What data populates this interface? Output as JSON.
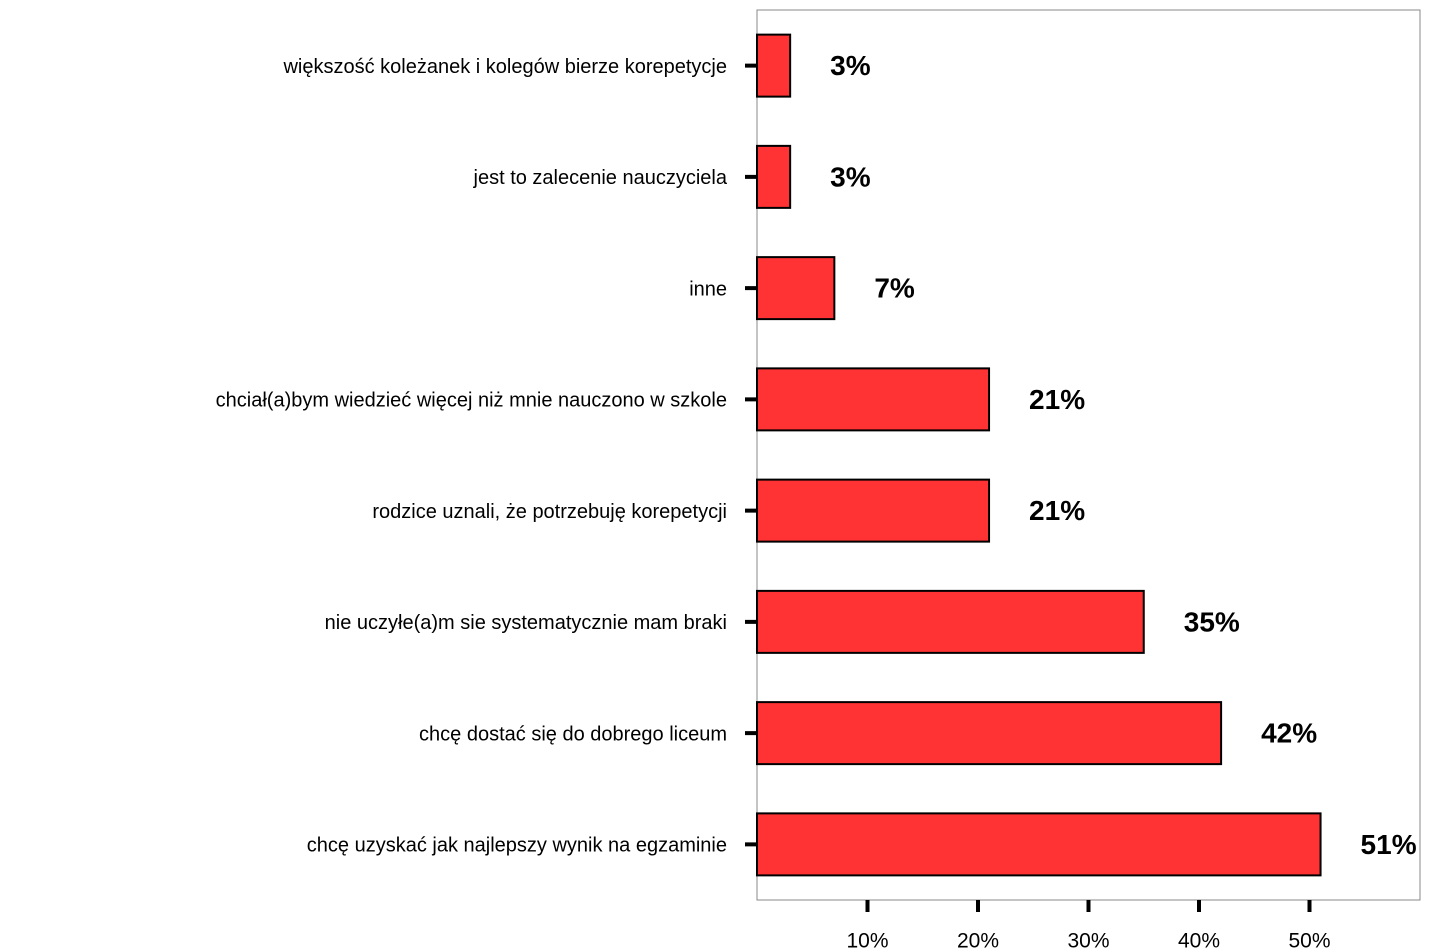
{
  "chart_data": {
    "type": "bar",
    "orientation": "horizontal",
    "categories": [
      "większość koleżanek i kolegów bierze korepetycje",
      "jest to zalecenie nauczyciela",
      "inne",
      "chciał(a)bym wiedzieć więcej niż mnie nauczono w szkole",
      "rodzice uznali, że potrzebuję korepetycji",
      "nie uczyłe(a)m sie systematycznie mam braki",
      "chcę dostać się do dobrego liceum",
      "chcę uzyskać jak najlepszy wynik na egzaminie"
    ],
    "values": [
      3,
      3,
      7,
      21,
      21,
      35,
      42,
      51
    ],
    "value_labels": [
      "3%",
      "3%",
      "7%",
      "21%",
      "21%",
      "35%",
      "42%",
      "51%"
    ],
    "color": "#ff3333",
    "xlim": [
      0,
      60
    ],
    "xticks": [
      {
        "value": 10,
        "label": "10%"
      },
      {
        "value": 20,
        "label": "20%"
      },
      {
        "value": 30,
        "label": "30%"
      },
      {
        "value": 40,
        "label": "40%"
      },
      {
        "value": 50,
        "label": "50%"
      }
    ],
    "grid": false
  }
}
